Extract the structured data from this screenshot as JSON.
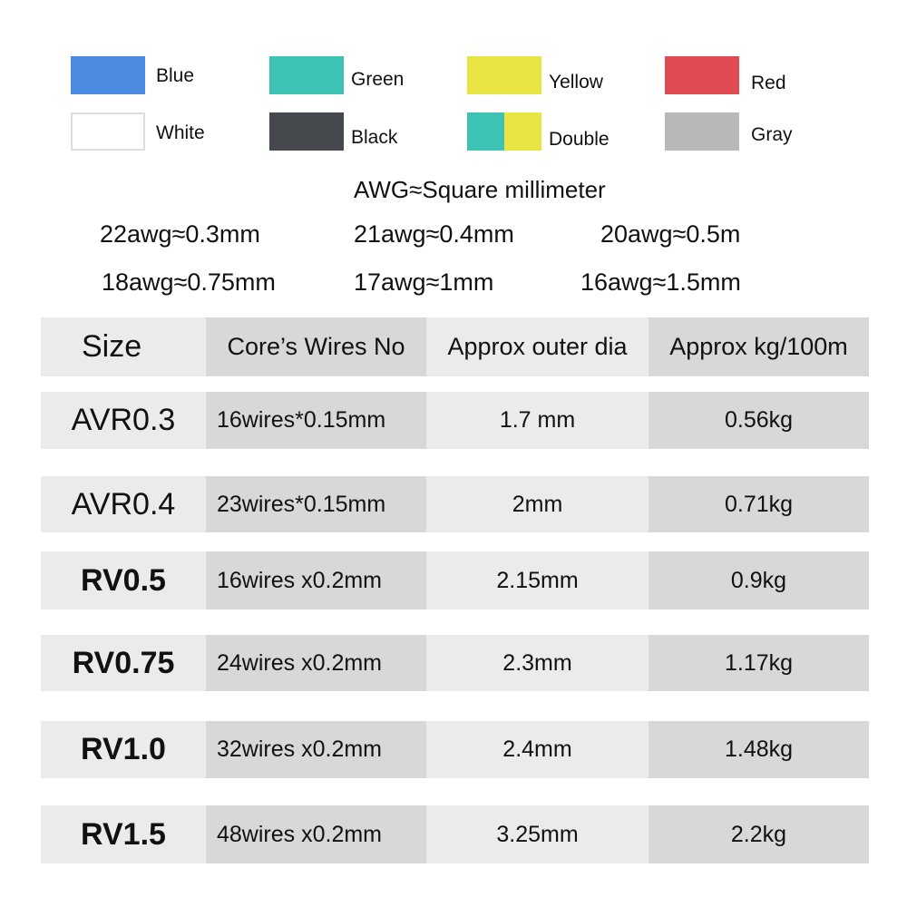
{
  "colors": [
    {
      "label": "Blue",
      "hex": "#4a8ae0"
    },
    {
      "label": "Green",
      "hex": "#3cc3b3"
    },
    {
      "label": "Yellow",
      "hex": "#e8e444"
    },
    {
      "label": "Red",
      "hex": "#e04a52"
    },
    {
      "label": "White",
      "hex": "#ffffff"
    },
    {
      "label": "Black",
      "hex": "#45494e"
    },
    {
      "label": "Double",
      "hex": "#3cc3b3",
      "hex2": "#e8e444"
    },
    {
      "label": "Gray",
      "hex": "#b8b8b8"
    }
  ],
  "awg": {
    "title": "AWG≈Square millimeter",
    "items": [
      "22awg≈0.3mm",
      "21awg≈0.4mm",
      "20awg≈0.5m",
      "18awg≈0.75mm",
      "17awg≈1mm",
      "16awg≈1.5mm"
    ]
  },
  "table": {
    "headers": [
      "Size",
      "Core’s Wires No",
      "Approx outer dia",
      "Approx kg/100m"
    ],
    "rows": [
      [
        "AVR0.3",
        "16wires*0.15mm",
        "1.7 mm",
        "0.56kg"
      ],
      [
        "AVR0.4",
        "23wires*0.15mm",
        "2mm",
        "0.71kg"
      ],
      [
        "RV0.5",
        "16wires x0.2mm",
        "2.15mm",
        "0.9kg"
      ],
      [
        "RV0.75",
        "24wires x0.2mm",
        "2.3mm",
        "1.17kg"
      ],
      [
        "RV1.0",
        "32wires x0.2mm",
        "2.4mm",
        "1.48kg"
      ],
      [
        "RV1.5",
        "48wires x0.2mm",
        "3.25mm",
        "2.2kg"
      ]
    ]
  }
}
